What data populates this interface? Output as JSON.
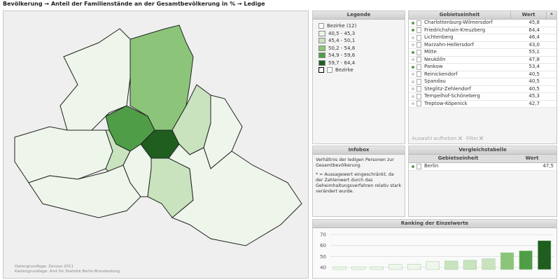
{
  "title": "Bevölkerung → Anteil der Familienstände an der Gesamtbevölkerung in % → Ledige",
  "map": {
    "footnotes": [
      "Datengrundlage: Zensus 2011",
      "Kartengrundlage: Amt für Statistik Berlin-Brandenburg"
    ]
  },
  "legend": {
    "header": "Legende",
    "layer": "Bezirke (12)",
    "classes": [
      {
        "label": "40,5 - 45,3",
        "color": "#eef5ea"
      },
      {
        "label": "45,4 - 50,1",
        "color": "#c8e3bd"
      },
      {
        "label": "50,2 - 54,8",
        "color": "#8cc57a"
      },
      {
        "label": "54,9 - 59,6",
        "color": "#4f9e47"
      },
      {
        "label": "59,7 - 64,4",
        "color": "#1f5e1f"
      }
    ],
    "outline": "Bezirke"
  },
  "table": {
    "columns": [
      "Gebietseinheit",
      "Wert",
      "*"
    ],
    "rows": [
      [
        "Charlottenburg-Wilmersdorf",
        "45,8"
      ],
      [
        "Friedrichshain-Kreuzberg",
        "64,4"
      ],
      [
        "Lichtenberg",
        "46,4"
      ],
      [
        "Marzahn-Hellersdorf",
        "43,0"
      ],
      [
        "Mitte",
        "55,1"
      ],
      [
        "Neukölln",
        "47,8"
      ],
      [
        "Pankow",
        "53,4"
      ],
      [
        "Reinickendorf",
        "40,5"
      ],
      [
        "Spandau",
        "40,5"
      ],
      [
        "Steglitz-Zehlendorf",
        "40,5"
      ],
      [
        "Tempelhof-Schöneberg",
        "45,3"
      ],
      [
        "Treptow-Köpenick",
        "42,7"
      ]
    ],
    "actions": [
      "Auswahl aufheben",
      "Filter"
    ]
  },
  "infobox": {
    "header": "Infobox",
    "paragraphs": [
      "Verhältnis der ledigen Personen zur Gesamtbevölkerung.",
      "* = Aussagewert eingeschränkt, da der Zahlenwert durch das Geheimhaltungsverfahren relativ stark verändert wurde."
    ]
  },
  "comparison": {
    "header": "Vergleichstabelle",
    "columns": [
      "Gebietseinheit",
      "Wert"
    ],
    "rows": [
      [
        "Berlin",
        "47,5"
      ]
    ]
  },
  "ranking": {
    "type": "bar",
    "title": "Ranking der Einzelwerte",
    "values": [
      40.5,
      40.5,
      40.5,
      42.7,
      43.0,
      45.3,
      45.8,
      46.4,
      47.8,
      53.4,
      55.1,
      64.4
    ],
    "colors": [
      "#f0f6ec",
      "#f0f6ec",
      "#f0f6ec",
      "#f0f6ec",
      "#f0f6ec",
      "#f0f6ec",
      "#c8e3bd",
      "#c8e3bd",
      "#c8e3bd",
      "#8cc57a",
      "#4f9e47",
      "#1f5e1f"
    ],
    "ylim": [
      38,
      72
    ],
    "yticks": [
      40,
      50,
      60,
      70
    ],
    "grid": true
  }
}
